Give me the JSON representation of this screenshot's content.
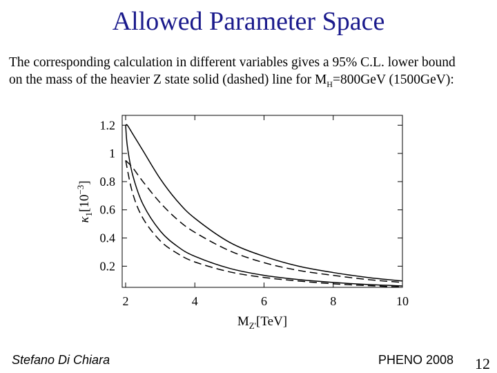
{
  "slide": {
    "title": "Allowed Parameter Space",
    "text_line1": "The corresponding calculation in different variables gives a 95% C.L. lower bound",
    "text_line2_a": "on the mass of the heavier Z state solid (dashed) line for M",
    "text_line2_sub": "H",
    "text_line2_b": "=800GeV (1500GeV):",
    "author": "Stefano Di Chiara",
    "conference": "PHENO 2008",
    "page_number": "12"
  },
  "chart_data": {
    "type": "line",
    "xlabel_main": "M",
    "xlabel_sub": "Z'",
    "xlabel_unit": "[TeV]",
    "ylabel_main": "κ",
    "ylabel_sub": "1",
    "ylabel_unit": "[10",
    "ylabel_exp": "−3",
    "ylabel_close": "]",
    "xlim": [
      1.9,
      10
    ],
    "ylim": [
      0.05,
      1.27
    ],
    "x_ticks": [
      2,
      4,
      6,
      8,
      10
    ],
    "x_tick_labels": [
      "2",
      "4",
      "6",
      "8",
      "10"
    ],
    "y_ticks": [
      0.2,
      0.4,
      0.6,
      0.8,
      1.0,
      1.2
    ],
    "y_tick_labels": [
      "0.2",
      "0.4",
      "0.6",
      "0.8",
      "1",
      "1.2"
    ],
    "grid": false,
    "series": [
      {
        "style": "solid",
        "x": [
          2.0,
          2.05,
          2.2,
          2.5,
          3.0,
          3.5,
          4.0,
          5.0,
          6.0,
          7.0,
          8.0,
          9.0,
          10.0
        ],
        "y": [
          1.2,
          1.2,
          1.14,
          1.02,
          0.82,
          0.66,
          0.54,
          0.37,
          0.27,
          0.2,
          0.155,
          0.12,
          0.095
        ]
      },
      {
        "style": "solid",
        "x": [
          2.0,
          2.05,
          2.2,
          2.5,
          3.0,
          3.5,
          4.0,
          5.0,
          6.0,
          7.0,
          8.0,
          9.0,
          10.0
        ],
        "y": [
          1.2,
          1.05,
          0.85,
          0.64,
          0.45,
          0.34,
          0.27,
          0.185,
          0.135,
          0.105,
          0.085,
          0.07,
          0.06
        ]
      },
      {
        "style": "dashed",
        "x": [
          2.0,
          2.2,
          2.5,
          3.0,
          3.5,
          4.0,
          5.0,
          6.0,
          7.0,
          8.0,
          9.0,
          10.0
        ],
        "y": [
          0.95,
          0.9,
          0.8,
          0.65,
          0.53,
          0.44,
          0.31,
          0.225,
          0.17,
          0.135,
          0.105,
          0.085
        ]
      },
      {
        "style": "dashed",
        "x": [
          2.0,
          2.2,
          2.5,
          3.0,
          3.5,
          4.0,
          5.0,
          6.0,
          7.0,
          8.0,
          9.0,
          10.0
        ],
        "y": [
          0.95,
          0.72,
          0.54,
          0.38,
          0.29,
          0.23,
          0.16,
          0.12,
          0.095,
          0.075,
          0.062,
          0.052
        ]
      }
    ]
  }
}
